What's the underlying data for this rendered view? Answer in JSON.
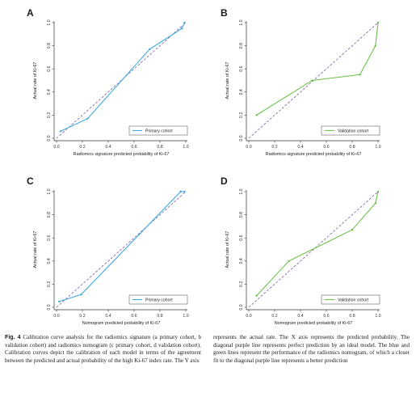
{
  "chart_data": [
    {
      "type": "line",
      "panel": "A",
      "xlabel": "Radiomics signature  predicted probability of Ki-67",
      "ylabel": "Actual rate of Ki-67",
      "xlim": [
        0,
        1
      ],
      "ylim": [
        0,
        1
      ],
      "xticks": [
        "0.0",
        "0.2",
        "0.4",
        "0.6",
        "0.8",
        "1.0"
      ],
      "yticks": [
        "0.0",
        "0.2",
        "0.4",
        "0.6",
        "0.8",
        "1.0"
      ],
      "legend_position": "bottom-right",
      "reference_line": {
        "x": [
          0,
          1
        ],
        "y": [
          0,
          1
        ],
        "color": "#7b5ea7",
        "style": "dashed"
      },
      "series": [
        {
          "name": "Primary cohort",
          "color": "#3fa9dd",
          "x": [
            0.03,
            0.24,
            0.72,
            0.97,
            0.99
          ],
          "y": [
            0.06,
            0.17,
            0.77,
            0.95,
            1.0
          ]
        }
      ]
    },
    {
      "type": "line",
      "panel": "B",
      "xlabel": "Radiomics signature  predicted probability of Ki-67",
      "ylabel": "Actual rate of Ki-67",
      "xlim": [
        0,
        1
      ],
      "ylim": [
        0,
        1
      ],
      "xticks": [
        "0.0",
        "0.2",
        "0.4",
        "0.6",
        "0.8",
        "1.0"
      ],
      "yticks": [
        "0.0",
        "0.2",
        "0.4",
        "0.6",
        "0.8",
        "1.0"
      ],
      "legend_position": "bottom-right",
      "reference_line": {
        "x": [
          0,
          1
        ],
        "y": [
          0,
          1
        ],
        "color": "#7b5ea7",
        "style": "dashed"
      },
      "series": [
        {
          "name": "Validation cohort",
          "color": "#6cc24a",
          "x": [
            0.06,
            0.49,
            0.86,
            0.98,
            1.0
          ],
          "y": [
            0.2,
            0.5,
            0.55,
            0.8,
            1.0
          ]
        }
      ]
    },
    {
      "type": "line",
      "panel": "C",
      "xlabel": "Nomogram predicted probability of Ki-67",
      "ylabel": "Actual rate of Ki-67",
      "xlim": [
        0,
        1
      ],
      "ylim": [
        0,
        1
      ],
      "xticks": [
        "0.0",
        "0.2",
        "0.4",
        "0.6",
        "0.8",
        "1.0"
      ],
      "yticks": [
        "0.0",
        "0.2",
        "0.4",
        "0.6",
        "0.8",
        "1.0"
      ],
      "legend_position": "bottom-right",
      "reference_line": {
        "x": [
          0,
          1
        ],
        "y": [
          0,
          1
        ],
        "color": "#7b5ea7",
        "style": "dashed"
      },
      "series": [
        {
          "name": "Primary cohort",
          "color": "#3fa9dd",
          "x": [
            0.02,
            0.19,
            0.96,
            0.99
          ],
          "y": [
            0.05,
            0.11,
            1.0,
            1.0
          ]
        }
      ]
    },
    {
      "type": "line",
      "panel": "D",
      "xlabel": "Nomogram predicted probability of Ki-67",
      "ylabel": "Actual rate of Ki-67",
      "xlim": [
        0,
        1
      ],
      "ylim": [
        0,
        1
      ],
      "xticks": [
        "0.0",
        "0.2",
        "0.4",
        "0.6",
        "0.8",
        "1.0"
      ],
      "yticks": [
        "0.0",
        "0.2",
        "0.4",
        "0.6",
        "0.8",
        "1.0"
      ],
      "legend_position": "bottom-right",
      "reference_line": {
        "x": [
          0,
          1
        ],
        "y": [
          0,
          1
        ],
        "color": "#7b5ea7",
        "style": "dashed"
      },
      "series": [
        {
          "name": "Validation cohort",
          "color": "#6cc24a",
          "x": [
            0.06,
            0.31,
            0.8,
            0.98,
            1.0
          ],
          "y": [
            0.1,
            0.4,
            0.67,
            0.9,
            1.0
          ]
        }
      ]
    }
  ],
  "caption": {
    "label": "Fig. 4",
    "left": " Calibration curve analysis for the radiomics signature (a primary cohort, b validation cohort) and radiomics nomogram (c primary cohort, d validation cohort). Calibration curves depict the calibration of each model in terms of the agreement between the predicted and actual probability of the high Ki-67 index rate. The Y axis",
    "right": "represents the actual rate. The X axis represents the predicted probability. The diagonal purple line represents perfect prediction by an ideal model. The blue and green lines represent the performance of the radiomics nomogram, of which a closer fit to the diagonal purple line represents a better prediction"
  }
}
